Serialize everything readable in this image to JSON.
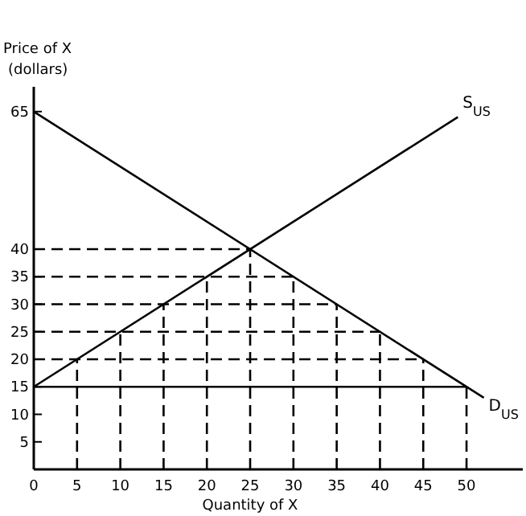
{
  "chart_data": {
    "type": "line",
    "xlabel": "Quantity of X",
    "ylabel": "Price of X\n(dollars)",
    "xlim": [
      0,
      56.5
    ],
    "ylim": [
      0,
      69.5
    ],
    "xticks": [
      0,
      5,
      10,
      15,
      20,
      25,
      30,
      35,
      40,
      45,
      50
    ],
    "yticks": [
      5,
      10,
      15,
      20,
      25,
      30,
      35,
      40,
      65
    ],
    "grid": false,
    "legend": false,
    "marker": "none",
    "series": [
      {
        "name": "S$_{US}$",
        "color": "#000000",
        "line_style": "solid",
        "x": [
          0,
          49
        ],
        "values": [
          15,
          64
        ]
      },
      {
        "name": "D$_{US}$",
        "color": "#000000",
        "line_style": "solid",
        "x": [
          0,
          52
        ],
        "values": [
          65,
          13
        ]
      },
      {
        "color": "#000000",
        "line_style": "solid",
        "x": [
          0,
          50
        ],
        "values": [
          15,
          15
        ]
      },
      {
        "color": "#000000",
        "line_style": "dashed",
        "x": [
          0,
          25
        ],
        "values": [
          40,
          40
        ]
      },
      {
        "color": "#000000",
        "line_style": "dashed",
        "x": [
          0,
          30
        ],
        "values": [
          35,
          35
        ]
      },
      {
        "color": "#000000",
        "line_style": "dashed",
        "x": [
          0,
          35
        ],
        "values": [
          30,
          30
        ]
      },
      {
        "color": "#000000",
        "line_style": "dashed",
        "x": [
          0,
          40
        ],
        "values": [
          25,
          25
        ]
      },
      {
        "color": "#000000",
        "line_style": "dashed",
        "x": [
          0,
          45
        ],
        "values": [
          20,
          20
        ]
      },
      {
        "color": "#000000",
        "line_style": "dashed",
        "x": [
          5,
          5
        ],
        "values": [
          0,
          20
        ]
      },
      {
        "color": "#000000",
        "line_style": "dashed",
        "x": [
          10,
          10
        ],
        "values": [
          0,
          25
        ]
      },
      {
        "color": "#000000",
        "line_style": "dashed",
        "x": [
          15,
          15
        ],
        "values": [
          0,
          30
        ]
      },
      {
        "color": "#000000",
        "line_style": "dashed",
        "x": [
          20,
          20
        ],
        "values": [
          0,
          35
        ]
      },
      {
        "color": "#000000",
        "line_style": "dashed",
        "x": [
          25,
          25
        ],
        "values": [
          0,
          40
        ]
      },
      {
        "color": "#000000",
        "line_style": "dashed",
        "x": [
          30,
          30
        ],
        "values": [
          0,
          35
        ]
      },
      {
        "color": "#000000",
        "line_style": "dashed",
        "x": [
          35,
          35
        ],
        "values": [
          0,
          30
        ]
      },
      {
        "color": "#000000",
        "line_style": "dashed",
        "x": [
          40,
          40
        ],
        "values": [
          0,
          25
        ]
      },
      {
        "color": "#000000",
        "line_style": "dashed",
        "x": [
          45,
          45
        ],
        "values": [
          0,
          20
        ]
      },
      {
        "color": "#000000",
        "line_style": "dashed",
        "x": [
          50,
          50
        ],
        "values": [
          0,
          15
        ]
      }
    ]
  }
}
